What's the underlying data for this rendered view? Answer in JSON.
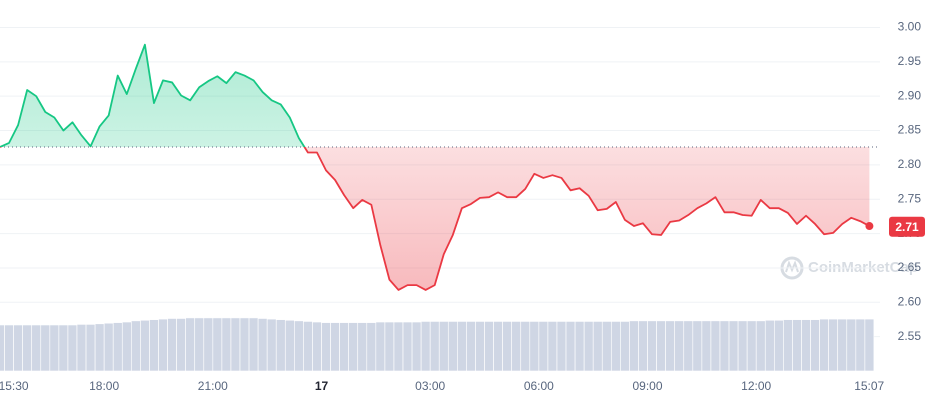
{
  "chart_data": {
    "type": "line",
    "watermark": "CoinMarketCap",
    "x": [
      -0.375,
      -0.125,
      0.125,
      0.375,
      0.625,
      0.875,
      1.125,
      1.375,
      1.625,
      1.875,
      2.125,
      2.375,
      2.625,
      2.875,
      3.125,
      3.375,
      3.625,
      3.875,
      4.125,
      4.375,
      4.625,
      4.875,
      5.125,
      5.375,
      5.625,
      5.875,
      6.125,
      6.375,
      6.625,
      6.875,
      7.125,
      7.375,
      7.625,
      7.875,
      8.125,
      8.375,
      8.625,
      8.875,
      9.125,
      9.375,
      9.625,
      9.875,
      10.125,
      10.375,
      10.625,
      10.875,
      11.125,
      11.375,
      11.625,
      11.875,
      12.125,
      12.375,
      12.625,
      12.875,
      13.125,
      13.375,
      13.625,
      13.875,
      14.125,
      14.375,
      14.625,
      14.875,
      15.125,
      15.375,
      15.625,
      15.875,
      16.125,
      16.375,
      16.625,
      16.875,
      17.125,
      17.375,
      17.625,
      17.875,
      18.125,
      18.375,
      18.625,
      18.875,
      19.125,
      19.375,
      19.625,
      19.875,
      20.125,
      20.375,
      20.625,
      20.875,
      21.125,
      21.375,
      21.625,
      21.875,
      22.125,
      22.375,
      22.625,
      22.875,
      23.125,
      23.375,
      23.625
    ],
    "series": [
      {
        "color_up": "#16c784",
        "color_down": "#ea3943",
        "values": [
          2.826,
          2.832,
          2.858,
          2.909,
          2.9,
          2.877,
          2.869,
          2.85,
          2.862,
          2.843,
          2.827,
          2.856,
          2.872,
          2.93,
          2.903,
          2.94,
          2.975,
          2.89,
          2.923,
          2.92,
          2.901,
          2.894,
          2.913,
          2.922,
          2.929,
          2.919,
          2.935,
          2.93,
          2.923,
          2.906,
          2.894,
          2.888,
          2.869,
          2.839,
          2.818,
          2.818,
          2.792,
          2.778,
          2.756,
          2.737,
          2.749,
          2.742,
          2.683,
          2.633,
          2.618,
          2.625,
          2.625,
          2.618,
          2.625,
          2.67,
          2.698,
          2.737,
          2.743,
          2.752,
          2.753,
          2.76,
          2.753,
          2.753,
          2.765,
          2.787,
          2.781,
          2.785,
          2.781,
          2.763,
          2.766,
          2.755,
          2.734,
          2.736,
          2.746,
          2.72,
          2.711,
          2.715,
          2.699,
          2.698,
          2.717,
          2.719,
          2.727,
          2.737,
          2.744,
          2.753,
          2.731,
          2.731,
          2.727,
          2.726,
          2.749,
          2.737,
          2.737,
          2.73,
          2.714,
          2.726,
          2.714,
          2.699,
          2.701,
          2.714,
          2.723,
          2.718,
          2.711
        ]
      }
    ],
    "volume": {
      "color": "#cfd6e4",
      "lim": [
        0,
        100
      ],
      "values": [
        78,
        78,
        78,
        78,
        78,
        78,
        78,
        78,
        78,
        79,
        79,
        80,
        81,
        82,
        83,
        85,
        86,
        87,
        88,
        89,
        89,
        90,
        90,
        90,
        90,
        90,
        90,
        90,
        90,
        89,
        88,
        87,
        86,
        85,
        84,
        83,
        82,
        82,
        82,
        82,
        82,
        82,
        83,
        83,
        83,
        83,
        83,
        84,
        84,
        84,
        84,
        84,
        84,
        84,
        84,
        84,
        84,
        84,
        84,
        84,
        84,
        84,
        84,
        84,
        84,
        84,
        84,
        84,
        84,
        84,
        85,
        85,
        85,
        85,
        85,
        85,
        85,
        85,
        85,
        85,
        85,
        85,
        85,
        85,
        85,
        86,
        86,
        87,
        87,
        87,
        87,
        88,
        88,
        88,
        88,
        88,
        88
      ]
    },
    "baseline": 2.826,
    "current_price": 2.71,
    "xlim": [
      -0.375,
      23.625
    ],
    "xticks": [
      {
        "value": 0,
        "label": "15:30"
      },
      {
        "value": 2.5,
        "label": "18:00"
      },
      {
        "value": 5.5,
        "label": "21:00"
      },
      {
        "value": 8.5,
        "label": "17"
      },
      {
        "value": 11.5,
        "label": "03:00"
      },
      {
        "value": 14.5,
        "label": "06:00"
      },
      {
        "value": 17.5,
        "label": "09:00"
      },
      {
        "value": 20.5,
        "label": "12:00"
      },
      {
        "value": 23.62,
        "label": "15:07"
      }
    ],
    "ylim": [
      2.5,
      3.04
    ],
    "yticks": [
      2.55,
      {
        "value": 2.6,
        "label": "2.60"
      },
      2.65,
      {
        "value": 2.7,
        "label": "2.70"
      },
      2.75,
      {
        "value": 2.8,
        "label": "2.80"
      },
      2.85,
      {
        "value": 2.9,
        "label": "2.90"
      },
      2.95,
      {
        "value": 3,
        "label": "3.00"
      }
    ],
    "grid": true
  }
}
